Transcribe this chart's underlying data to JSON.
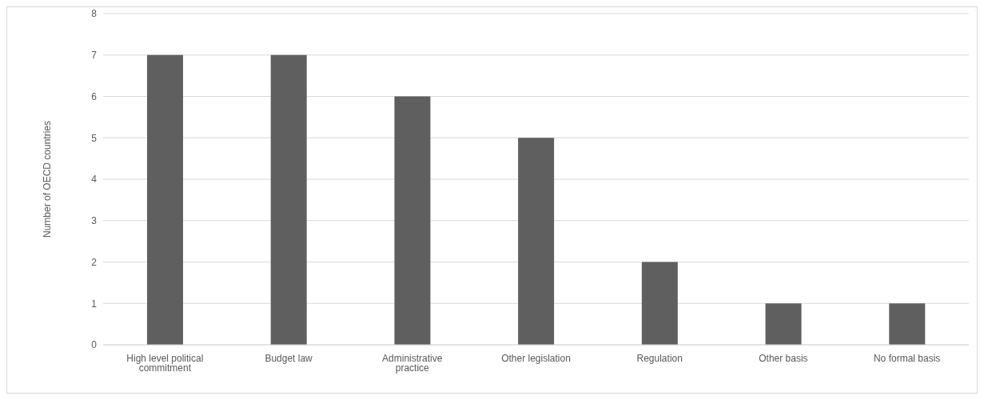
{
  "chart_data": {
    "type": "bar",
    "ylabel": "Number of OECD countries",
    "categories": [
      "High level political commitment",
      "Budget law",
      "Administrative practice",
      "Other legislation",
      "Regulation",
      "Other basis",
      "No formal basis"
    ],
    "values": [
      7,
      7,
      6,
      5,
      2,
      1,
      1
    ],
    "color": "#5f5f5f",
    "ylim": [
      0,
      8
    ],
    "yticks": [
      0,
      1,
      2,
      3,
      4,
      5,
      6,
      7,
      8
    ],
    "grid": "y",
    "legend": false
  }
}
